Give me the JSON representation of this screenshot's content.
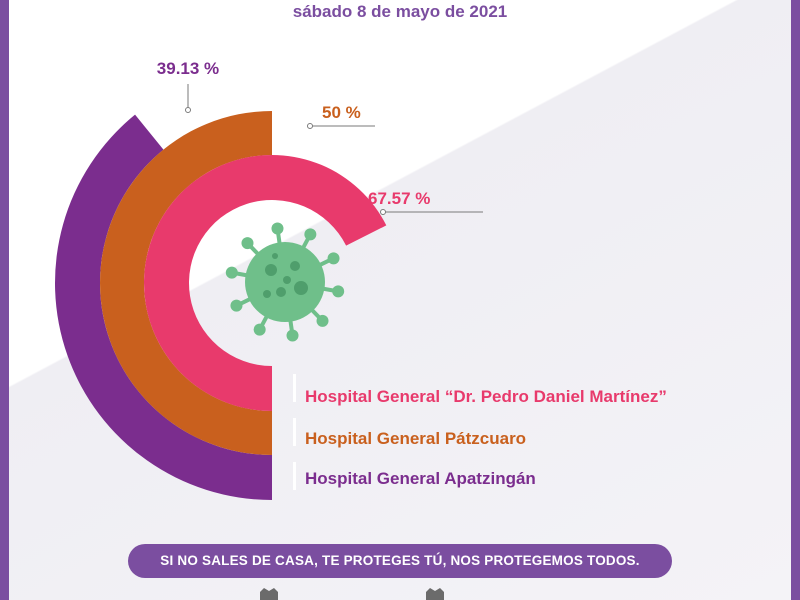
{
  "header": {
    "date": "sábado 8 de mayo de 2021"
  },
  "chart_data": {
    "type": "radial-bar",
    "unit": "%",
    "series": [
      {
        "name": "Hospital General Apatzingán",
        "value": 39.13,
        "label": "39.13 %",
        "color": "#7b2d8e"
      },
      {
        "name": "Hospital General Pátzcuaro",
        "value": 50,
        "label": "50 %",
        "color": "#c9601e"
      },
      {
        "name": "Hospital General “Dr. Pedro Daniel Martínez”",
        "value": 67.57,
        "label": "67.57 %",
        "color": "#e83a6c"
      }
    ]
  },
  "legend": [
    {
      "text": "Hospital General “Dr. Pedro Daniel Martínez”",
      "color": "#e83a6c"
    },
    {
      "text": "Hospital General Pátzcuaro",
      "color": "#c9601e"
    },
    {
      "text": "Hospital General Apatzingán",
      "color": "#7b2d8e"
    }
  ],
  "icons": {
    "center": "virus-icon",
    "footer": "crest-icon"
  },
  "banner": {
    "text": "SI NO SALES DE CASA, TE PROTEGES TÚ, NOS PROTEGEMOS TODOS."
  }
}
